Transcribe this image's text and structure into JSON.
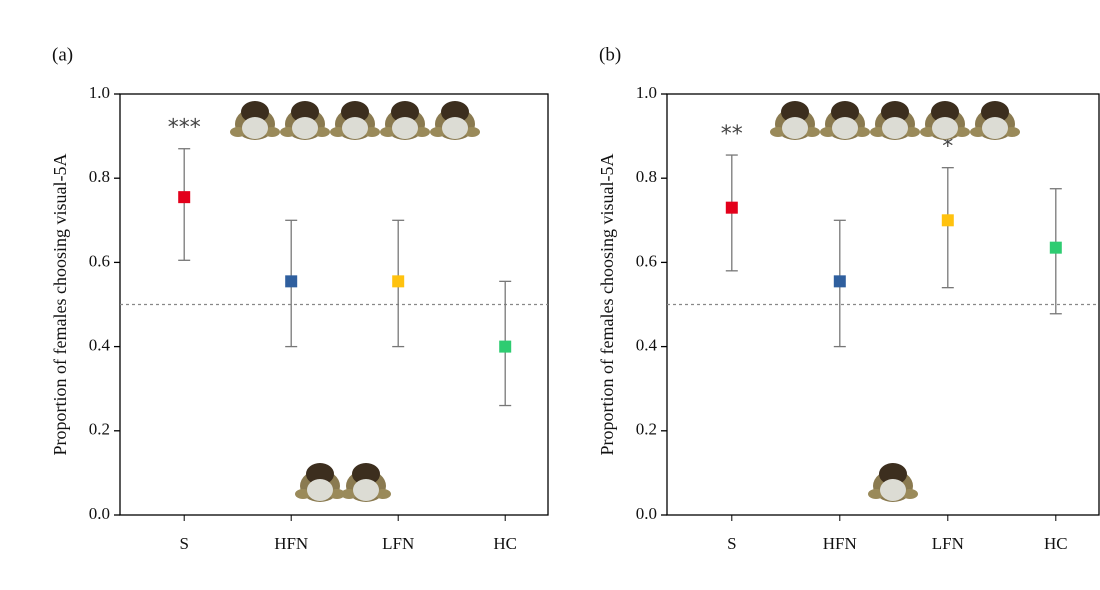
{
  "chart_data": [
    {
      "type": "errorpoint",
      "title": "(a)",
      "y_label": "Proportion of females choosing visual-5A",
      "categories": [
        "S",
        "HFN",
        "LFN",
        "HC"
      ],
      "values": [
        0.755,
        0.555,
        0.555,
        0.4
      ],
      "lower": [
        0.605,
        0.4,
        0.4,
        0.26
      ],
      "upper": [
        0.87,
        0.7,
        0.7,
        0.555
      ],
      "colors": [
        "#e3001b",
        "#2f5f9e",
        "#ffc20e",
        "#2ecc71"
      ],
      "annotations": [
        "***",
        null,
        null,
        null
      ],
      "reference_line": 0.5,
      "ylim": [
        0,
        1.0
      ],
      "yticks": [
        {
          "value": 0,
          "label": "0.0"
        },
        0.2,
        0.4,
        0.6,
        0.8,
        {
          "value": 1,
          "label": "1.0"
        }
      ]
    },
    {
      "type": "errorpoint",
      "title": "(b)",
      "y_label": "Proportion of females choosing visual-5A",
      "categories": [
        "S",
        "HFN",
        "LFN",
        "HC"
      ],
      "values": [
        0.73,
        0.555,
        0.7,
        0.635
      ],
      "lower": [
        0.58,
        0.4,
        0.54,
        0.478
      ],
      "upper": [
        0.855,
        0.7,
        0.825,
        0.775
      ],
      "colors": [
        "#e3001b",
        "#2f5f9e",
        "#ffc20e",
        "#2ecc71"
      ],
      "annotations": [
        "**",
        null,
        "*",
        null
      ],
      "reference_line": 0.5,
      "ylim": [
        0,
        1.0
      ],
      "yticks": [
        {
          "value": 0,
          "label": "0.0"
        },
        0.2,
        0.4,
        0.6,
        0.8,
        {
          "value": 1,
          "label": "1.0"
        }
      ]
    }
  ]
}
